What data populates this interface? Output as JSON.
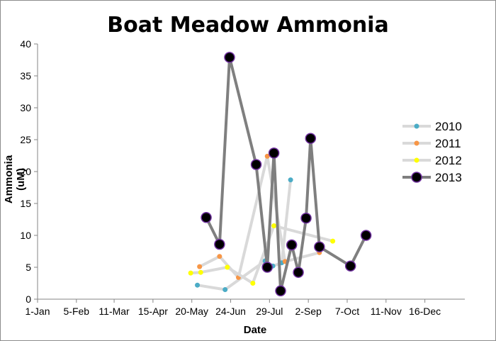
{
  "chart_data": {
    "type": "line",
    "title": "Boat Meadow Ammonia",
    "xlabel": "Date",
    "ylabel": "Ammonia (uM)",
    "ylim": [
      0,
      40
    ],
    "y_ticks": [
      0,
      5,
      10,
      15,
      20,
      25,
      30,
      35,
      40
    ],
    "x_tick_labels": [
      "1-Jan",
      "5-Feb",
      "11-Mar",
      "15-Apr",
      "20-May",
      "24-Jun",
      "29-Jul",
      "2-Sep",
      "7-Oct",
      "11-Nov",
      "16-Dec"
    ],
    "grid": "horizontal",
    "legend": "right",
    "series": [
      {
        "name": "2010",
        "color": "#4bacc6",
        "points": [
          {
            "x": "25-May",
            "y": 2.2
          },
          {
            "x": "19-Jun",
            "y": 1.5
          },
          {
            "x": "25-Jul",
            "y": 6.0
          },
          {
            "x": "1-Aug",
            "y": 5.2
          },
          {
            "x": "9-Aug",
            "y": 5.7
          },
          {
            "x": "17-Aug",
            "y": 18.7
          }
        ]
      },
      {
        "name": "2011",
        "color": "#f79646",
        "points": [
          {
            "x": "27-May",
            "y": 5.1
          },
          {
            "x": "14-Jun",
            "y": 6.7
          },
          {
            "x": "1-Jul",
            "y": 3.4
          },
          {
            "x": "27-Jul",
            "y": 22.4
          },
          {
            "x": "12-Aug",
            "y": 5.9
          },
          {
            "x": "12-Sep",
            "y": 7.3
          }
        ]
      },
      {
        "name": "2012",
        "color": "#ffff00",
        "points": [
          {
            "x": "19-May",
            "y": 4.1
          },
          {
            "x": "28-May",
            "y": 4.2
          },
          {
            "x": "21-Jun",
            "y": 5.0
          },
          {
            "x": "14-Jul",
            "y": 2.5
          },
          {
            "x": "2-Aug",
            "y": 11.5
          },
          {
            "x": "24-Sep",
            "y": 9.1
          }
        ]
      },
      {
        "name": "2013",
        "color": "#000000",
        "points": [
          {
            "x": "2-Jun",
            "y": 12.8
          },
          {
            "x": "14-Jun",
            "y": 8.6
          },
          {
            "x": "23-Jun",
            "y": 37.9
          },
          {
            "x": "17-Jul",
            "y": 21.1
          },
          {
            "x": "27-Jul",
            "y": 5.0
          },
          {
            "x": "2-Aug",
            "y": 22.9
          },
          {
            "x": "8-Aug",
            "y": 1.3
          },
          {
            "x": "18-Aug",
            "y": 8.5
          },
          {
            "x": "24-Aug",
            "y": 4.2
          },
          {
            "x": "31-Aug",
            "y": 12.7
          },
          {
            "x": "4-Sep",
            "y": 25.2
          },
          {
            "x": "12-Sep",
            "y": 8.2
          },
          {
            "x": "10-Oct",
            "y": 5.2
          },
          {
            "x": "24-Oct",
            "y": 10.0
          }
        ]
      }
    ]
  }
}
